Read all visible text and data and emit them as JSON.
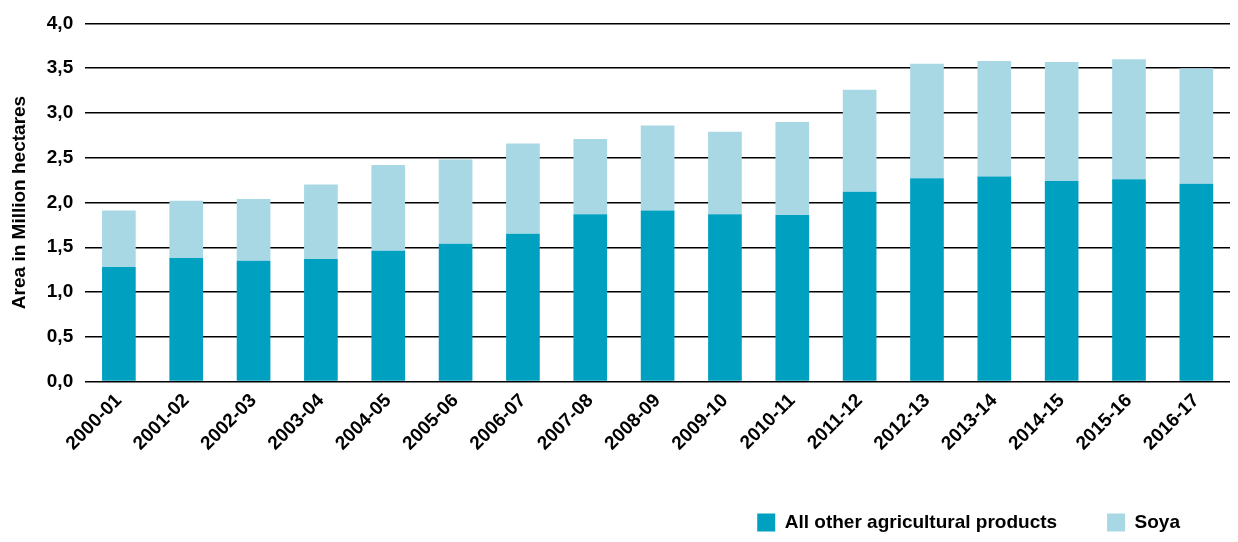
{
  "chart_data": {
    "type": "bar",
    "stacked": true,
    "ylabel": "Area in Million hectares",
    "categories": [
      "2000-01",
      "2001-02",
      "2002-03",
      "2003-04",
      "2004-05",
      "2005-06",
      "2006-07",
      "2007-08",
      "2008-09",
      "2009-10",
      "2010-11",
      "2011-12",
      "2012-13",
      "2013-14",
      "2014-15",
      "2015-16",
      "2016-17"
    ],
    "series": [
      {
        "name": "All other agricultural products",
        "color": "#00a0c0",
        "values": [
          1.28,
          1.38,
          1.35,
          1.37,
          1.46,
          1.54,
          1.65,
          1.87,
          1.91,
          1.87,
          1.86,
          2.12,
          2.27,
          2.29,
          2.24,
          2.26,
          2.21
        ]
      },
      {
        "name": "Soya",
        "color": "#a8d8e4",
        "values": [
          0.63,
          0.64,
          0.69,
          0.83,
          0.96,
          0.94,
          1.01,
          0.84,
          0.95,
          0.92,
          1.04,
          1.14,
          1.28,
          1.29,
          1.33,
          1.34,
          1.29
        ]
      }
    ],
    "ylim": [
      0,
      4
    ],
    "yticks": [
      {
        "value": 0,
        "label": "0,0"
      },
      {
        "value": 0.5,
        "label": "0,5"
      },
      {
        "value": 1,
        "label": "1,0"
      },
      {
        "value": 1.5,
        "label": "1,5"
      },
      {
        "value": 2,
        "label": "2,0"
      },
      {
        "value": 2.5,
        "label": "2,5"
      },
      {
        "value": 3,
        "label": "3,0"
      },
      {
        "value": 3.5,
        "label": "3,5"
      },
      {
        "value": 4,
        "label": "4,0"
      }
    ],
    "grid": "y",
    "legend": "bottom right"
  }
}
